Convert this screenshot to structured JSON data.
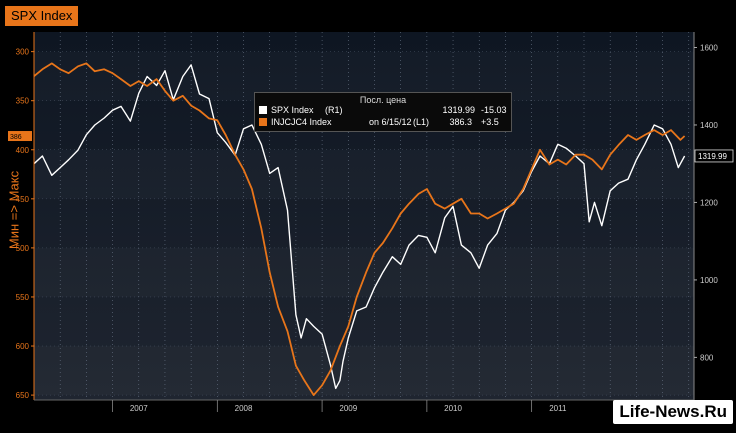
{
  "header": {
    "title": "SPX Index"
  },
  "watermark": {
    "text": "Life-News.Ru"
  },
  "legend": {
    "header": "Посл. цена",
    "row1": {
      "name": "SPX Index",
      "axis": "(R1)",
      "last": "1319.99",
      "change": "-15.03"
    },
    "row2": {
      "name": "INJCJC4 Index",
      "date": "on 6/15/12",
      "axis": "(L1)",
      "last": "386.3",
      "change": "+3.5"
    }
  },
  "colors": {
    "spx": "#ffffff",
    "injcjc4": "#e8751a",
    "title_bg": "#e8751a",
    "axis_left": "#e8751a"
  },
  "chart_data": {
    "type": "line",
    "ylabel_left": "Мин => Макс",
    "x_labels": [
      "2007",
      "2008",
      "2009",
      "2010",
      "2011"
    ],
    "left_axis": {
      "ticks": [
        300,
        350,
        400,
        450,
        500,
        550,
        600,
        650
      ],
      "range": [
        280,
        655
      ],
      "inverted": true,
      "current_label": "386"
    },
    "right_axis": {
      "ticks": [
        800,
        1000,
        1200,
        1400,
        1600
      ],
      "range": [
        690,
        1640
      ],
      "current_label": "1319.99"
    },
    "series": [
      {
        "name": "SPX Index",
        "axis": "right",
        "x": [
          2006.25,
          2006.33,
          2006.42,
          2006.5,
          2006.58,
          2006.67,
          2006.75,
          2006.83,
          2006.92,
          2007.0,
          2007.08,
          2007.17,
          2007.25,
          2007.33,
          2007.42,
          2007.5,
          2007.58,
          2007.67,
          2007.75,
          2007.83,
          2007.92,
          2008.0,
          2008.08,
          2008.17,
          2008.25,
          2008.33,
          2008.42,
          2008.5,
          2008.58,
          2008.67,
          2008.75,
          2008.8,
          2008.85,
          2008.92,
          2009.0,
          2009.08,
          2009.13,
          2009.17,
          2009.2,
          2009.25,
          2009.33,
          2009.42,
          2009.5,
          2009.58,
          2009.67,
          2009.75,
          2009.83,
          2009.92,
          2010.0,
          2010.08,
          2010.17,
          2010.25,
          2010.33,
          2010.42,
          2010.5,
          2010.58,
          2010.67,
          2010.75,
          2010.83,
          2010.92,
          2011.0,
          2011.08,
          2011.17,
          2011.25,
          2011.33,
          2011.42,
          2011.5,
          2011.55,
          2011.6,
          2011.67,
          2011.75,
          2011.83,
          2011.92,
          2012.0,
          2012.08,
          2012.17,
          2012.25,
          2012.33,
          2012.4,
          2012.46
        ],
        "values": [
          1300,
          1320,
          1270,
          1290,
          1310,
          1335,
          1375,
          1400,
          1418,
          1438,
          1448,
          1410,
          1482,
          1525,
          1502,
          1540,
          1465,
          1525,
          1555,
          1480,
          1468,
          1380,
          1355,
          1322,
          1390,
          1400,
          1350,
          1275,
          1290,
          1180,
          910,
          850,
          900,
          880,
          860,
          780,
          720,
          740,
          790,
          850,
          920,
          930,
          980,
          1020,
          1060,
          1040,
          1090,
          1115,
          1110,
          1070,
          1160,
          1190,
          1090,
          1070,
          1030,
          1090,
          1120,
          1180,
          1200,
          1230,
          1280,
          1320,
          1300,
          1350,
          1340,
          1320,
          1300,
          1150,
          1200,
          1140,
          1230,
          1250,
          1260,
          1310,
          1350,
          1400,
          1390,
          1350,
          1290,
          1320
        ]
      },
      {
        "name": "INJCJC4 Index",
        "axis": "left",
        "x": [
          2006.25,
          2006.33,
          2006.42,
          2006.5,
          2006.58,
          2006.67,
          2006.75,
          2006.83,
          2006.92,
          2007.0,
          2007.08,
          2007.17,
          2007.25,
          2007.33,
          2007.42,
          2007.5,
          2007.58,
          2007.67,
          2007.75,
          2007.83,
          2007.92,
          2008.0,
          2008.08,
          2008.17,
          2008.25,
          2008.33,
          2008.42,
          2008.5,
          2008.58,
          2008.67,
          2008.75,
          2008.83,
          2008.92,
          2009.0,
          2009.08,
          2009.17,
          2009.25,
          2009.33,
          2009.42,
          2009.5,
          2009.58,
          2009.67,
          2009.75,
          2009.83,
          2009.92,
          2010.0,
          2010.08,
          2010.17,
          2010.25,
          2010.33,
          2010.42,
          2010.5,
          2010.58,
          2010.67,
          2010.75,
          2010.83,
          2010.92,
          2011.0,
          2011.08,
          2011.17,
          2011.25,
          2011.33,
          2011.42,
          2011.5,
          2011.58,
          2011.67,
          2011.75,
          2011.83,
          2011.92,
          2012.0,
          2012.08,
          2012.17,
          2012.25,
          2012.33,
          2012.42,
          2012.46
        ],
        "values": [
          325,
          318,
          312,
          318,
          322,
          315,
          312,
          320,
          318,
          322,
          328,
          335,
          330,
          335,
          328,
          340,
          350,
          345,
          355,
          360,
          368,
          370,
          385,
          405,
          420,
          440,
          480,
          525,
          560,
          585,
          620,
          635,
          650,
          640,
          625,
          600,
          580,
          550,
          525,
          505,
          495,
          480,
          465,
          455,
          445,
          440,
          455,
          460,
          455,
          450,
          465,
          465,
          470,
          465,
          460,
          455,
          440,
          420,
          400,
          415,
          410,
          415,
          405,
          405,
          410,
          420,
          405,
          395,
          385,
          390,
          385,
          380,
          385,
          380,
          390,
          386
        ]
      }
    ]
  }
}
